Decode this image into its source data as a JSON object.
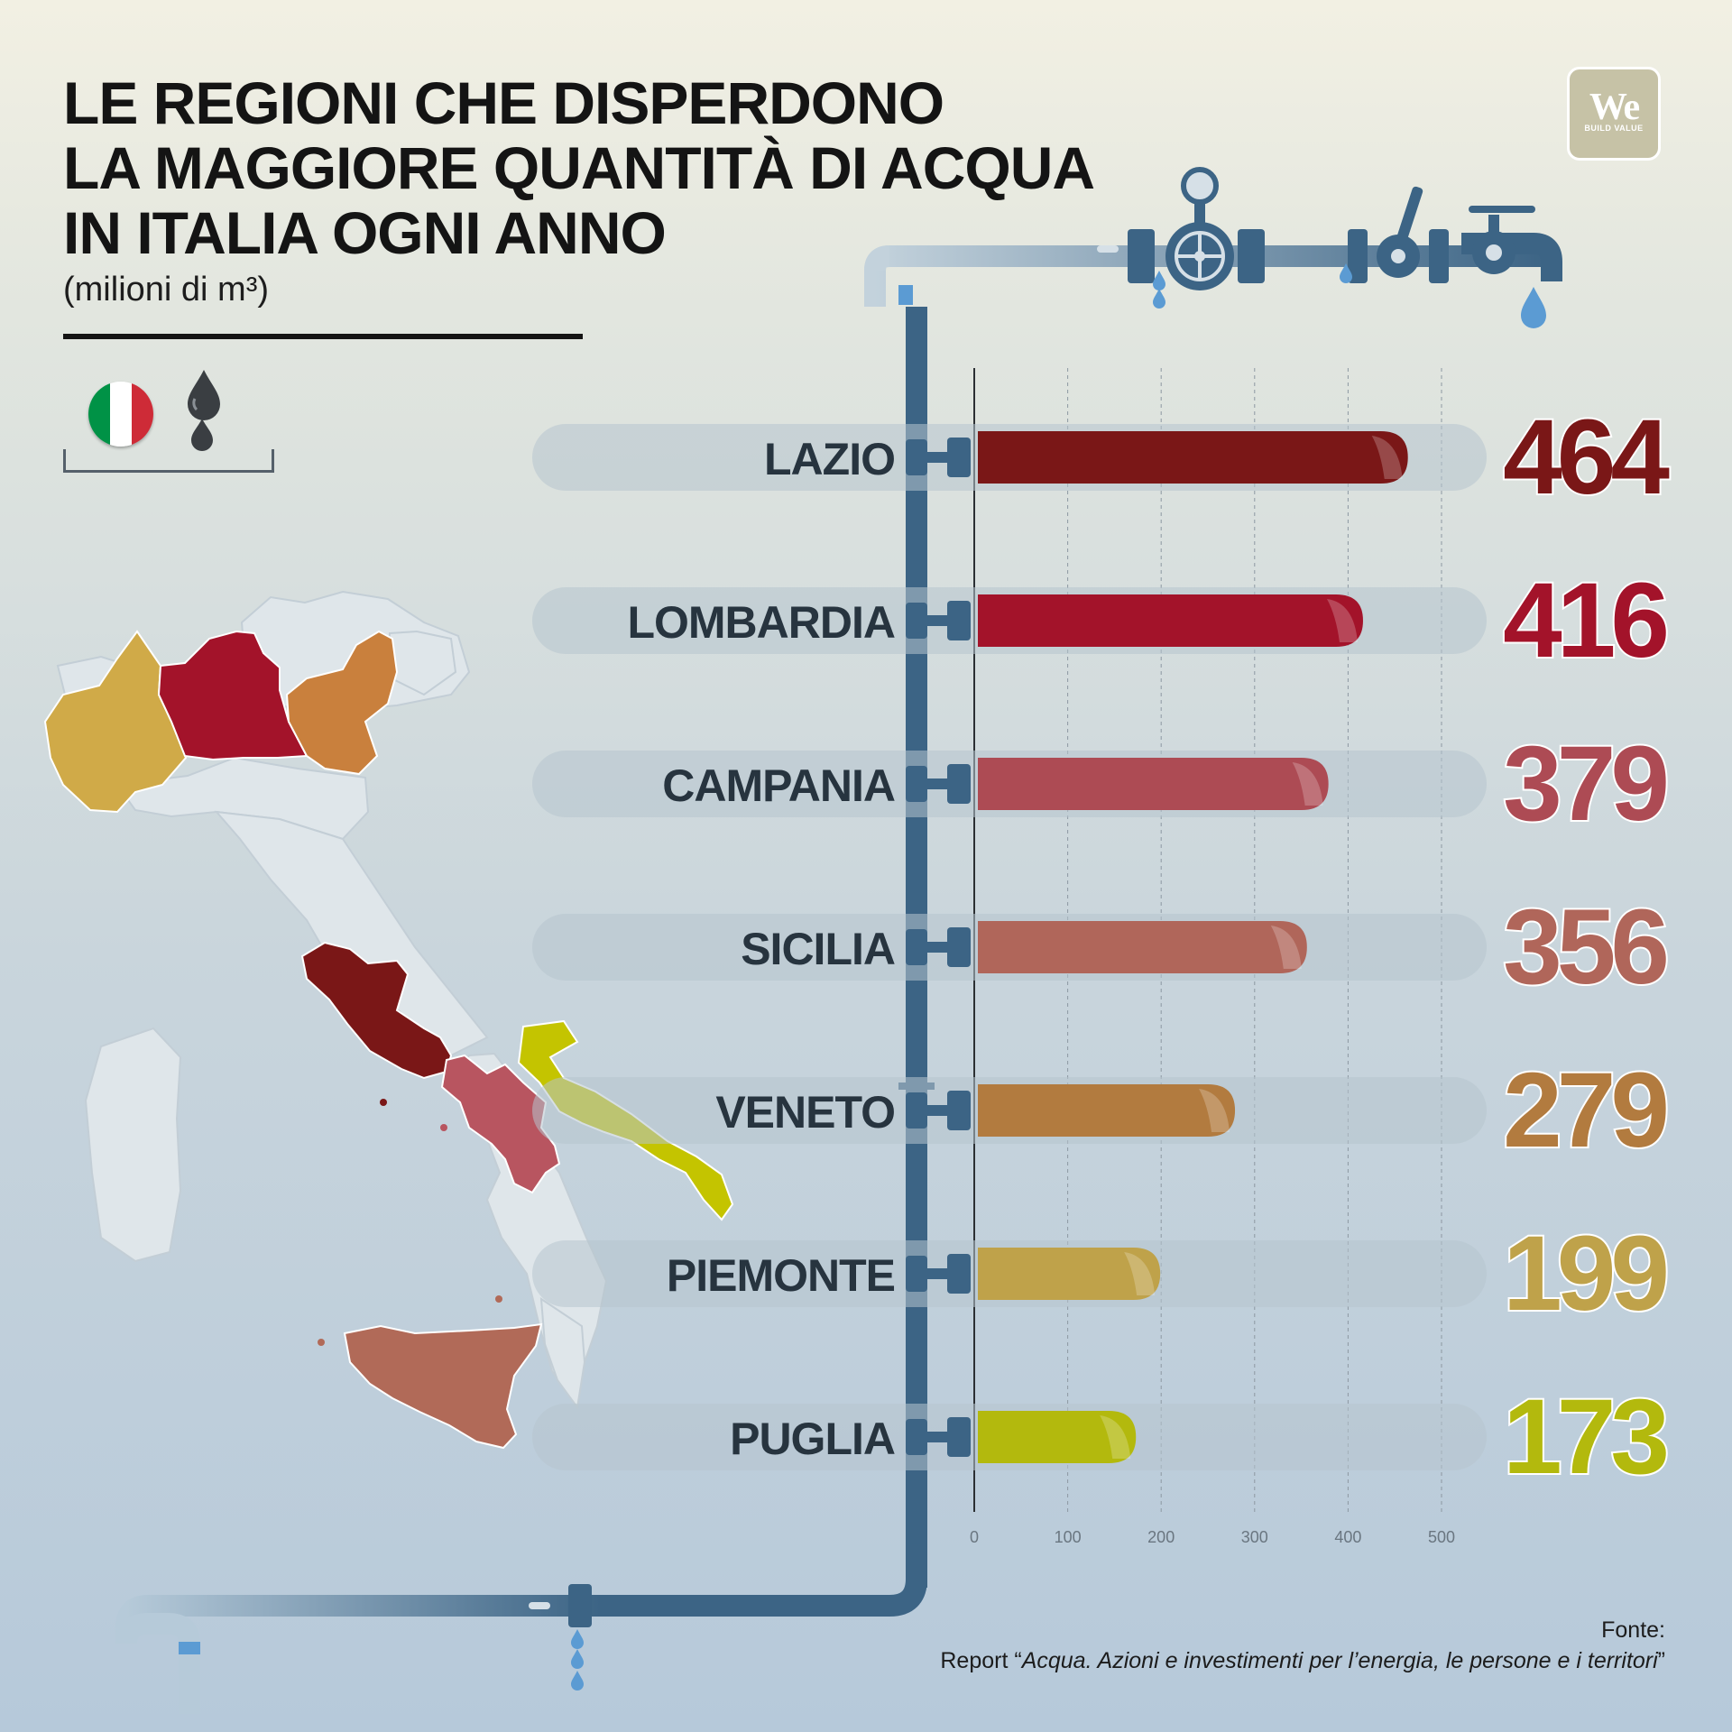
{
  "title_lines": [
    "LE REGIONI CHE DISPERDONO",
    "LA MAGGIORE QUANTITÀ DI ACQUA",
    "IN ITALIA OGNI ANNO"
  ],
  "subtitle": "(milioni di m³)",
  "logo": {
    "mark": "We",
    "tagline": "BUILD VALUE"
  },
  "legend": {
    "flag_icon": "italy-flag-icon",
    "drops_icon": "water-drops-icon",
    "flag_colors": [
      "#009246",
      "#ffffff",
      "#ce2b37"
    ]
  },
  "source": {
    "label": "Fonte:",
    "prefix": "Report “",
    "report": "Acqua. Azioni e investimenti per l’energia, le persone e i territori",
    "suffix": "”"
  },
  "chart_data": {
    "type": "bar",
    "orientation": "horizontal",
    "title": "LE REGIONI CHE DISPERDONO LA MAGGIORE QUANTITÀ DI ACQUA IN ITALIA OGNI ANNO",
    "ylabel": "(milioni di m³)",
    "categories": [
      "LAZIO",
      "LOMBARDIA",
      "CAMPANIA",
      "SICILIA",
      "VENETO",
      "PIEMONTE",
      "PUGLIA"
    ],
    "values": [
      464,
      416,
      379,
      356,
      279,
      199,
      173
    ],
    "colors": [
      "#7a1717",
      "#a3132a",
      "#ad4b54",
      "#b0665a",
      "#b27b3f",
      "#bfa24a",
      "#b3b90d"
    ],
    "xlim": [
      0,
      500
    ],
    "ticks": [
      0,
      100,
      200,
      300,
      400,
      500
    ],
    "grid": true,
    "legend": "none"
  },
  "map": {
    "highlighted_regions": [
      {
        "region": "PIEMONTE",
        "color": "#d0aa48"
      },
      {
        "region": "LOMBARDIA",
        "color": "#a3132a"
      },
      {
        "region": "VENETO",
        "color": "#c9803d"
      },
      {
        "region": "LAZIO",
        "color": "#7a1717"
      },
      {
        "region": "CAMPANIA",
        "color": "#b85560"
      },
      {
        "region": "PUGLIA",
        "color": "#c4c400"
      },
      {
        "region": "SICILIA",
        "color": "#b16a58"
      }
    ],
    "other_regions_color": "#dfe6ea"
  }
}
